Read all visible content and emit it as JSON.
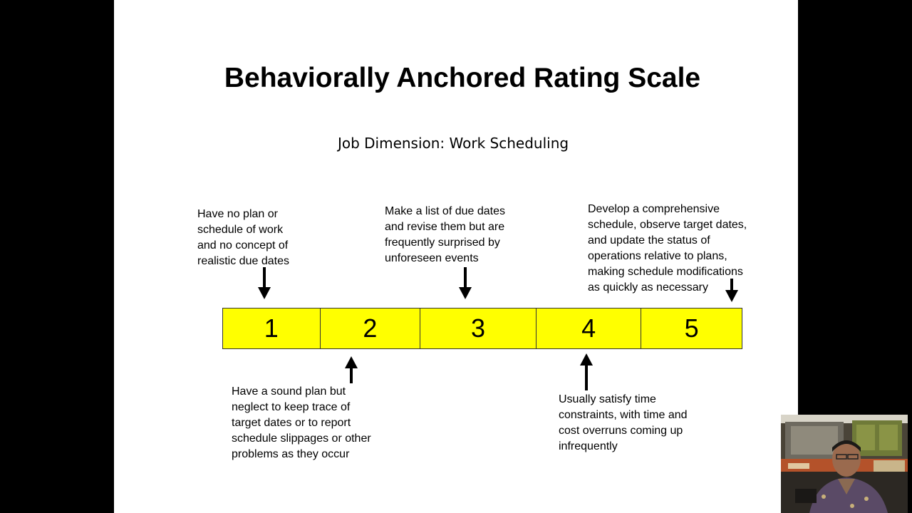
{
  "slide": {
    "title": "Behaviorally Anchored Rating Scale",
    "subtitle": "Job  Dimension: Work Scheduling"
  },
  "scale": {
    "fill_color": "#ffff00",
    "points": [
      "1",
      "2",
      "3",
      "4",
      "5"
    ]
  },
  "anchors": {
    "top_1": "Have no plan or\nschedule of work\nand no concept of\nrealistic due dates",
    "top_3": "Make a list of due dates\nand revise them but are\nfrequently surprised by\nunforeseen events",
    "top_5": "Develop a comprehensive\nschedule, observe target dates,\nand update the status of\noperations relative to plans,\nmaking schedule modifications\nas quickly as necessary",
    "bottom_2": "Have a sound plan but\nneglect to keep trace of\ntarget dates or to report\nschedule slippages or other\nproblems as they occur",
    "bottom_4": "Usually satisfy time\nconstraints, with time and\ncost overruns coming up\ninfrequently"
  },
  "webcam": {
    "icon": "presenter-video-thumbnail"
  }
}
